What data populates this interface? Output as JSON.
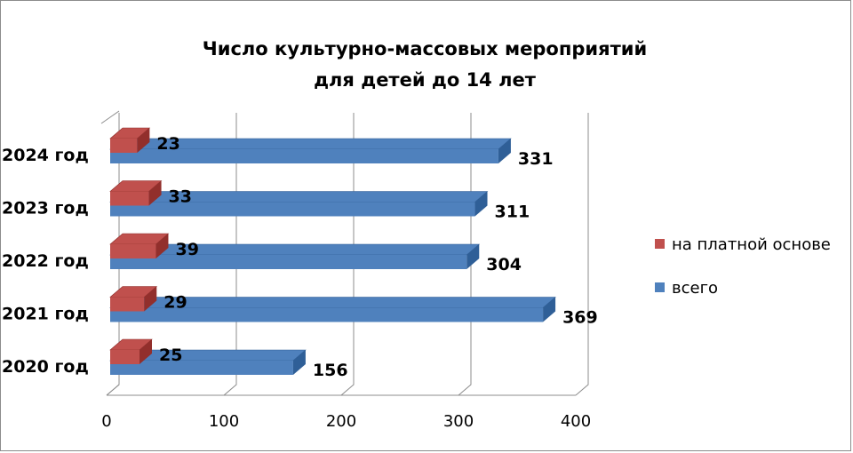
{
  "chart_data": {
    "type": "bar",
    "orientation": "horizontal",
    "title_lines": [
      "Число культурно-массовых мероприятий",
      "для детей до 14 лет"
    ],
    "categories": [
      "2020 год",
      "2021 год",
      "2022 год",
      "2023 год",
      "2024 год"
    ],
    "series": [
      {
        "name": "на платной основе",
        "values": [
          25,
          29,
          39,
          33,
          23
        ],
        "color": "#C0504D"
      },
      {
        "name": "всего",
        "values": [
          156,
          369,
          304,
          311,
          331
        ],
        "color": "#4F81BD"
      }
    ],
    "xticks": [
      "0",
      "100",
      "200",
      "300",
      "400"
    ],
    "xlim": [
      0,
      400
    ],
    "grid": true,
    "legend_position": "right"
  }
}
